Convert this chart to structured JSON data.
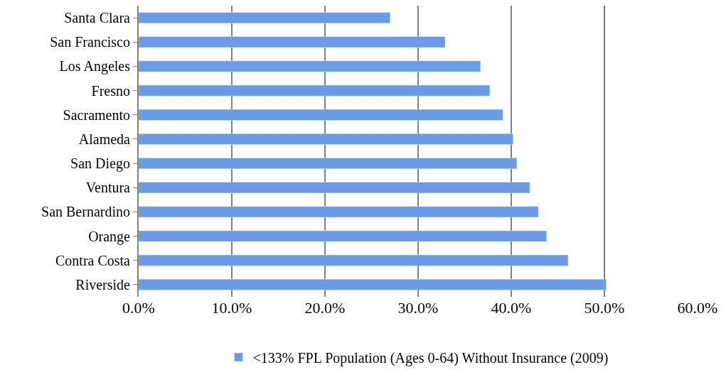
{
  "chart_data": {
    "type": "bar",
    "orientation": "horizontal",
    "categories": [
      "Santa Clara",
      "San Francisco",
      "Los Angeles",
      "Fresno",
      "Sacramento",
      "Alameda",
      "San Diego",
      "Ventura",
      "San Bernardino",
      "Orange",
      "Contra Costa",
      "Riverside"
    ],
    "series": [
      {
        "name": "<133% FPL Population (Ages 0-64) Without Insurance (2009)",
        "color": "#6a9be6",
        "values": [
          27.0,
          32.9,
          36.7,
          37.7,
          39.1,
          40.2,
          40.6,
          42.0,
          42.9,
          43.8,
          46.1,
          50.2
        ]
      }
    ],
    "xlim": [
      0,
      60
    ],
    "xticks": [
      {
        "value": 0,
        "label": "0.0%"
      },
      {
        "value": 10,
        "label": "10.0%"
      },
      {
        "value": 20,
        "label": "20.0%"
      },
      {
        "value": 30,
        "label": "30.0%"
      },
      {
        "value": 40,
        "label": "40.0%"
      },
      {
        "value": 50,
        "label": "50.0%"
      },
      {
        "value": 60,
        "label": "60.0%"
      }
    ],
    "grid": "x",
    "legend": "bottom"
  }
}
